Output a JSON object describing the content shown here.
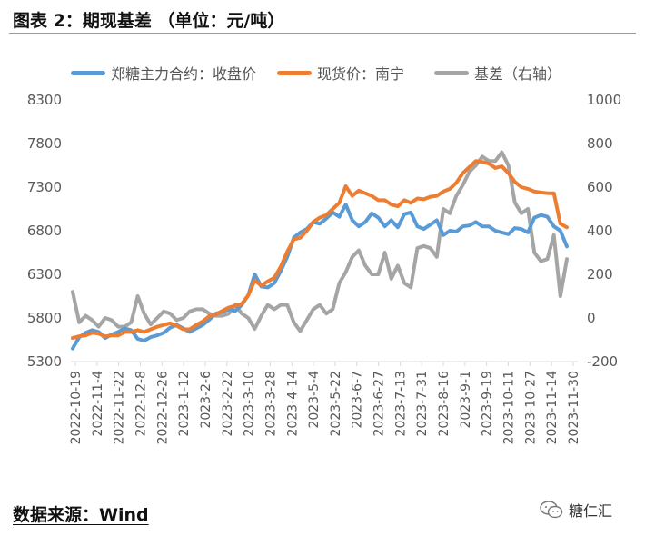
{
  "figure_title": "图表 2：期现基差 （单位：元/吨）",
  "source_text": "数据来源：Wind",
  "watermark": "糖仁汇",
  "watermark_icon": "wechat-icon",
  "colors": {
    "futures": "#5b9bd5",
    "spot": "#ed7d31",
    "basis": "#a5a5a5",
    "axis": "#d9d9d9",
    "text": "#595959"
  },
  "chart_data": {
    "type": "line",
    "legend_position": "top",
    "grid": false,
    "x_labels": [
      "2022-10-19",
      "2022-11-4",
      "2022-11-22",
      "2022-12-8",
      "2022-12-26",
      "2023-1-12",
      "2023-2-6",
      "2023-2-22",
      "2023-3-10",
      "2023-3-28",
      "2023-4-14",
      "2023-5-4",
      "2023-5-22",
      "2023-6-7",
      "2023-6-27",
      "2023-7-13",
      "2023-7-31",
      "2023-8-16",
      "2023-9-1",
      "2023-9-19",
      "2023-10-11",
      "2023-10-27",
      "2023-11-14",
      "2023-11-30"
    ],
    "y_left": {
      "min": 5300,
      "max": 8300,
      "ticks": [
        5300,
        5800,
        6300,
        6800,
        7300,
        7800,
        8300
      ]
    },
    "y_right": {
      "min": -200,
      "max": 1000,
      "ticks": [
        -200,
        0,
        200,
        400,
        600,
        800,
        1000
      ]
    },
    "series": [
      {
        "name": "郑糖主力合约：收盘价",
        "axis": "left",
        "values": [
          5450,
          5580,
          5630,
          5660,
          5640,
          5570,
          5610,
          5640,
          5680,
          5660,
          5560,
          5540,
          5580,
          5600,
          5630,
          5690,
          5720,
          5680,
          5640,
          5680,
          5720,
          5780,
          5850,
          5870,
          5900,
          5880,
          5950,
          6060,
          6300,
          6160,
          6150,
          6200,
          6340,
          6500,
          6720,
          6780,
          6820,
          6900,
          6880,
          6940,
          7010,
          6960,
          7100,
          6920,
          6850,
          6900,
          7000,
          6950,
          6850,
          6920,
          6840,
          6990,
          7010,
          6850,
          6820,
          6870,
          6920,
          6750,
          6800,
          6790,
          6850,
          6860,
          6900,
          6850,
          6850,
          6800,
          6780,
          6760,
          6830,
          6820,
          6780,
          6950,
          6980,
          6960,
          6850,
          6800,
          6620
        ]
      },
      {
        "name": "现货价：南宁",
        "axis": "left",
        "values": [
          5570,
          5590,
          5600,
          5630,
          5620,
          5590,
          5600,
          5600,
          5640,
          5640,
          5660,
          5640,
          5670,
          5700,
          5720,
          5740,
          5710,
          5670,
          5670,
          5720,
          5760,
          5820,
          5840,
          5880,
          5920,
          5940,
          5960,
          6060,
          6230,
          6170,
          6220,
          6260,
          6390,
          6560,
          6700,
          6720,
          6800,
          6900,
          6950,
          6980,
          7050,
          7120,
          7310,
          7200,
          7260,
          7230,
          7200,
          7150,
          7150,
          7100,
          7080,
          7150,
          7120,
          7170,
          7160,
          7190,
          7200,
          7250,
          7280,
          7350,
          7460,
          7530,
          7600,
          7590,
          7570,
          7520,
          7540,
          7460,
          7360,
          7300,
          7280,
          7250,
          7240,
          7230,
          7230,
          6880,
          6840
        ]
      },
      {
        "name": "基差（右轴）",
        "axis": "right",
        "values": [
          120,
          -20,
          10,
          -10,
          -40,
          0,
          -10,
          -40,
          -40,
          -20,
          100,
          20,
          -30,
          0,
          30,
          20,
          -10,
          0,
          30,
          40,
          40,
          20,
          10,
          10,
          20,
          60,
          20,
          0,
          -50,
          10,
          60,
          40,
          60,
          60,
          -20,
          -60,
          -10,
          40,
          60,
          20,
          40,
          160,
          210,
          280,
          310,
          240,
          200,
          200,
          300,
          180,
          240,
          160,
          140,
          320,
          330,
          320,
          280,
          500,
          480,
          560,
          610,
          670,
          700,
          740,
          720,
          720,
          760,
          700,
          530,
          480,
          500,
          300,
          260,
          270,
          380,
          100,
          270
        ]
      }
    ]
  }
}
